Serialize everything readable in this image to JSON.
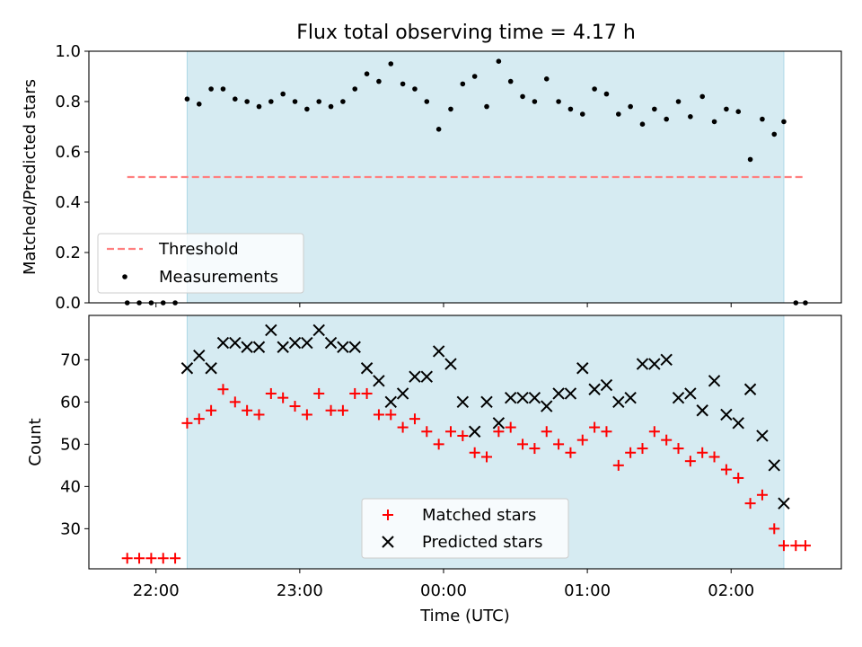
{
  "figure": {
    "title": "Flux total observing time = 4.17 h"
  },
  "colors": {
    "shade": "#add8e6",
    "threshold": "#ff7f7f",
    "measurements": "#000000",
    "matched": "#ff0000",
    "predicted": "#000000"
  },
  "chart_data": [
    {
      "type": "scatter",
      "title": "Flux total observing time = 4.17 h",
      "xlabel": "",
      "ylabel": "Matched/Predicted stars",
      "xlim": [
        "21:32",
        "02:46"
      ],
      "ylim": [
        0,
        1.0
      ],
      "yticks": [
        "0.0",
        "0.2",
        "0.4",
        "0.6",
        "0.8",
        "1.0"
      ],
      "grid": false,
      "legend_position": "lower-left",
      "shaded_interval": [
        "22:13",
        "02:22"
      ],
      "threshold": {
        "name": "Threshold",
        "value": 0.5,
        "x_range": [
          "21:48",
          "02:31"
        ],
        "style": "dashed"
      },
      "series": [
        {
          "name": "Measurements",
          "x": [
            "21:48",
            "21:53",
            "21:58",
            "22:03",
            "22:08",
            "22:13",
            "22:18",
            "22:23",
            "22:28",
            "22:33",
            "22:38",
            "22:43",
            "22:48",
            "22:53",
            "22:58",
            "23:03",
            "23:08",
            "23:13",
            "23:18",
            "23:23",
            "23:28",
            "23:33",
            "23:38",
            "23:43",
            "23:48",
            "23:53",
            "23:58",
            "00:03",
            "00:08",
            "00:13",
            "00:18",
            "00:23",
            "00:28",
            "00:33",
            "00:38",
            "00:43",
            "00:48",
            "00:53",
            "00:58",
            "01:03",
            "01:08",
            "01:13",
            "01:18",
            "01:23",
            "01:28",
            "01:33",
            "01:38",
            "01:43",
            "01:48",
            "01:53",
            "01:58",
            "02:03",
            "02:08",
            "02:13",
            "02:18",
            "02:22",
            "02:27",
            "02:31"
          ],
          "y": [
            0.0,
            0.0,
            0.0,
            0.0,
            0.0,
            0.81,
            0.79,
            0.85,
            0.85,
            0.81,
            0.8,
            0.78,
            0.8,
            0.83,
            0.8,
            0.77,
            0.8,
            0.78,
            0.8,
            0.85,
            0.91,
            0.88,
            0.95,
            0.87,
            0.85,
            0.8,
            0.69,
            0.77,
            0.87,
            0.9,
            0.78,
            0.96,
            0.88,
            0.82,
            0.8,
            0.89,
            0.8,
            0.77,
            0.75,
            0.85,
            0.83,
            0.75,
            0.78,
            0.71,
            0.77,
            0.73,
            0.8,
            0.74,
            0.82,
            0.72,
            0.77,
            0.76,
            0.57,
            0.73,
            0.67,
            0.72,
            0.0,
            0.0
          ]
        }
      ]
    },
    {
      "type": "scatter",
      "title": "",
      "xlabel": "Time (UTC)",
      "ylabel": "Count",
      "xlim": [
        "21:32",
        "02:46"
      ],
      "ylim": [
        20.5,
        80.5
      ],
      "yticks": [
        "30",
        "40",
        "50",
        "60",
        "70"
      ],
      "xticks": [
        "22:00",
        "23:00",
        "00:00",
        "01:00",
        "02:00"
      ],
      "grid": false,
      "legend_position": "lower-center",
      "shaded_interval": [
        "22:13",
        "02:22"
      ],
      "series": [
        {
          "name": "Matched stars",
          "marker": "+",
          "x": [
            "21:48",
            "21:53",
            "21:58",
            "22:03",
            "22:08",
            "22:13",
            "22:18",
            "22:23",
            "22:28",
            "22:33",
            "22:38",
            "22:43",
            "22:48",
            "22:53",
            "22:58",
            "23:03",
            "23:08",
            "23:13",
            "23:18",
            "23:23",
            "23:28",
            "23:33",
            "23:38",
            "23:43",
            "23:48",
            "23:53",
            "23:58",
            "00:03",
            "00:08",
            "00:13",
            "00:18",
            "00:23",
            "00:28",
            "00:33",
            "00:38",
            "00:43",
            "00:48",
            "00:53",
            "00:58",
            "01:03",
            "01:08",
            "01:13",
            "01:18",
            "01:23",
            "01:28",
            "01:33",
            "01:38",
            "01:43",
            "01:48",
            "01:53",
            "01:58",
            "02:03",
            "02:08",
            "02:13",
            "02:18",
            "02:22",
            "02:27",
            "02:31"
          ],
          "y": [
            23,
            23,
            23,
            23,
            23,
            55,
            56,
            58,
            63,
            60,
            58,
            57,
            62,
            61,
            59,
            57,
            62,
            58,
            58,
            62,
            62,
            57,
            57,
            54,
            56,
            53,
            50,
            53,
            52,
            48,
            47,
            53,
            54,
            50,
            49,
            53,
            50,
            48,
            51,
            54,
            53,
            45,
            48,
            49,
            53,
            51,
            49,
            46,
            48,
            47,
            44,
            42,
            36,
            38,
            30,
            26,
            26,
            26
          ]
        },
        {
          "name": "Predicted stars",
          "marker": "x",
          "x": [
            "22:13",
            "22:18",
            "22:23",
            "22:28",
            "22:33",
            "22:38",
            "22:43",
            "22:48",
            "22:53",
            "22:58",
            "23:03",
            "23:08",
            "23:13",
            "23:18",
            "23:23",
            "23:28",
            "23:33",
            "23:38",
            "23:43",
            "23:48",
            "23:53",
            "23:58",
            "00:03",
            "00:08",
            "00:13",
            "00:18",
            "00:23",
            "00:28",
            "00:33",
            "00:38",
            "00:43",
            "00:48",
            "00:53",
            "00:58",
            "01:03",
            "01:08",
            "01:13",
            "01:18",
            "01:23",
            "01:28",
            "01:33",
            "01:38",
            "01:43",
            "01:48",
            "01:53",
            "01:58",
            "02:03",
            "02:08",
            "02:13",
            "02:18",
            "02:22"
          ],
          "y": [
            68,
            71,
            68,
            74,
            74,
            73,
            73,
            77,
            73,
            74,
            74,
            77,
            74,
            73,
            73,
            68,
            65,
            60,
            62,
            66,
            66,
            72,
            69,
            60,
            53,
            60,
            55,
            61,
            61,
            61,
            59,
            62,
            62,
            68,
            63,
            64,
            60,
            61,
            69,
            69,
            70,
            61,
            62,
            58,
            65,
            57,
            55,
            63,
            52,
            45,
            36
          ]
        }
      ]
    }
  ]
}
